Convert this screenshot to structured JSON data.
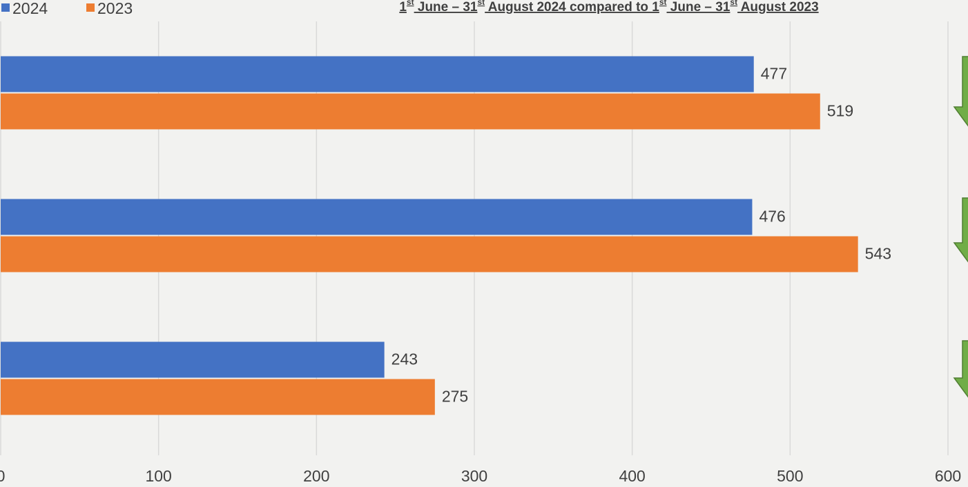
{
  "chart_data": {
    "type": "hbar",
    "title": [
      {
        "text": "1"
      },
      {
        "text": "st",
        "sup": true
      },
      {
        "text": " June – 31"
      },
      {
        "text": "st",
        "sup": true
      },
      {
        "text": " August 2024 compared to 1"
      },
      {
        "text": "st",
        "sup": true
      },
      {
        "text": " June – 31"
      },
      {
        "text": "st",
        "sup": true
      },
      {
        "text": " August 2023"
      }
    ],
    "categories": [
      null,
      null,
      null
    ],
    "series": [
      {
        "name": "2024",
        "color": "#4472c4",
        "values": [
          477,
          476,
          243
        ]
      },
      {
        "name": "2023",
        "color": "#ed7d31",
        "values": [
          519,
          543,
          275
        ]
      }
    ],
    "xlim": [
      0,
      600
    ],
    "xticks": [
      0,
      100,
      200,
      300,
      400,
      500,
      600
    ],
    "grid": true,
    "legend": "top-left"
  }
}
